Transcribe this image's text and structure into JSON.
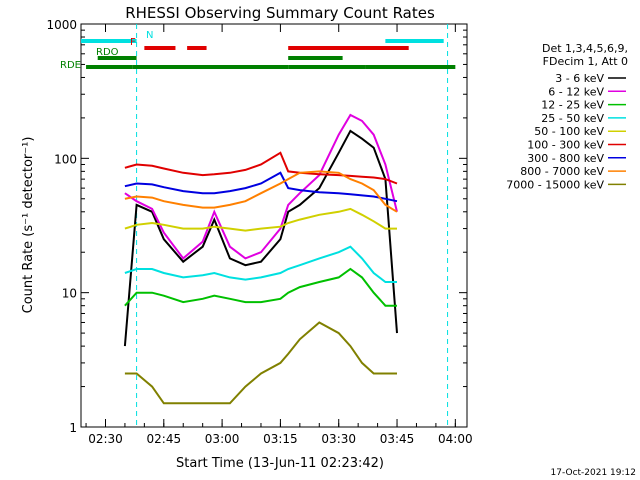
{
  "chart_data": {
    "type": "line",
    "title": "RHESSI Observing Summary Count Rates",
    "xlabel": "Start Time (13-Jun-11 02:23:42)",
    "ylabel": "Count Rate (s⁻¹ detector⁻¹)",
    "y_scale": "log",
    "ylim": [
      1,
      1000
    ],
    "xlim_minutes_utc": [
      "02:23:42",
      "04:03:00"
    ],
    "x_ticks": [
      "02:30",
      "02:45",
      "03:00",
      "03:15",
      "03:30",
      "03:45",
      "04:00"
    ],
    "y_ticks": [
      "1",
      "10",
      "100",
      "1000"
    ],
    "legend_header": [
      "Det 1,3,4,5,6,9,",
      "FDecim 1, Att 0"
    ],
    "timestamp": "17-Oct-2021 19:12",
    "grid": false,
    "x": [
      "02:35",
      "02:38",
      "02:42",
      "02:45",
      "02:50",
      "02:55",
      "02:58",
      "03:02",
      "03:06",
      "03:10",
      "03:15",
      "03:17",
      "03:20",
      "03:25",
      "03:30",
      "03:33",
      "03:36",
      "03:39",
      "03:42",
      "03:45"
    ],
    "series": [
      {
        "name": "3 - 6 keV",
        "color": "#000000",
        "values": [
          4,
          45,
          40,
          25,
          17,
          22,
          35,
          18,
          16,
          17,
          25,
          40,
          45,
          60,
          110,
          160,
          140,
          120,
          70,
          5
        ]
      },
      {
        "name": "6 - 12 keV",
        "color": "#e000e0",
        "values": [
          55,
          48,
          42,
          28,
          18,
          24,
          40,
          22,
          18,
          20,
          30,
          45,
          55,
          75,
          150,
          210,
          190,
          150,
          90,
          40
        ]
      },
      {
        "name": "12 - 25 keV",
        "color": "#00c000",
        "values": [
          8,
          10,
          10,
          9.5,
          8.5,
          9,
          9.5,
          9,
          8.5,
          8.5,
          9,
          10,
          11,
          12,
          13,
          15,
          13,
          10,
          8,
          8
        ]
      },
      {
        "name": "25 - 50 keV",
        "color": "#00e0e0",
        "values": [
          14,
          15,
          15,
          14,
          13,
          13.5,
          14,
          13,
          12.5,
          13,
          14,
          15,
          16,
          18,
          20,
          22,
          18,
          14,
          12,
          12
        ]
      },
      {
        "name": "50 - 100 keV",
        "color": "#d0d000",
        "values": [
          30,
          32,
          33,
          32,
          30,
          30,
          31,
          30,
          29,
          30,
          31,
          33,
          35,
          38,
          40,
          42,
          38,
          34,
          30,
          30
        ]
      },
      {
        "name": "100 - 300 keV",
        "color": "#e00000",
        "values": [
          85,
          90,
          88,
          84,
          78,
          75,
          76,
          78,
          82,
          90,
          110,
          80,
          78,
          76,
          75,
          74,
          73,
          72,
          70,
          65
        ]
      },
      {
        "name": "300 - 800 keV",
        "color": "#0000e0",
        "values": [
          62,
          65,
          64,
          61,
          57,
          55,
          55,
          57,
          60,
          65,
          78,
          60,
          58,
          56,
          55,
          54,
          53,
          52,
          50,
          48
        ]
      },
      {
        "name": "800 - 7000 keV",
        "color": "#ff8000",
        "values": [
          50,
          52,
          51,
          48,
          45,
          43,
          43,
          45,
          48,
          55,
          65,
          70,
          78,
          80,
          78,
          70,
          65,
          58,
          45,
          40
        ]
      },
      {
        "name": "7000 - 15000 keV",
        "color": "#808000",
        "values": [
          2.5,
          2.5,
          2,
          1.5,
          1.5,
          1.5,
          1.5,
          1.5,
          2,
          2.5,
          3,
          3.5,
          4.5,
          6,
          5,
          4,
          3,
          2.5,
          2.5,
          2.5
        ]
      }
    ],
    "flag_bars": [
      {
        "label": "N",
        "color": "#00e0e0",
        "segments": [
          [
            "02:23:42",
            "02:38"
          ],
          [
            "03:42",
            "03:57"
          ]
        ]
      },
      {
        "label": "F",
        "color": "#e00000",
        "segments": [
          [
            "02:40",
            "02:48"
          ],
          [
            "02:51",
            "02:56"
          ],
          [
            "03:17",
            "03:48"
          ]
        ]
      },
      {
        "label": "RDO",
        "color": "#008000",
        "segments": [
          [
            "02:28",
            "02:38"
          ],
          [
            "03:17",
            "03:31"
          ]
        ]
      },
      {
        "label": "RDE",
        "color": "#008000",
        "segments": [
          [
            "02:25",
            "02:37"
          ],
          [
            "02:37",
            "03:17"
          ],
          [
            "03:17",
            "03:37"
          ],
          [
            "03:37",
            "04:00"
          ]
        ]
      }
    ]
  }
}
